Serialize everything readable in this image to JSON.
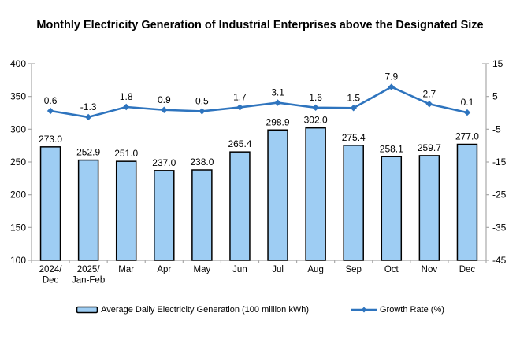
{
  "title": "Monthly Electricity Generation of Industrial Enterprises above the Designated Size",
  "chart_data": {
    "type": "bar",
    "subtype": "combo-bar-line",
    "categories": [
      "2024/\nDec",
      "2025/\nJan-Feb",
      "Mar",
      "Apr",
      "May",
      "Jun",
      "Jul",
      "Aug",
      "Sep",
      "Oct",
      "Nov",
      "Dec"
    ],
    "series": [
      {
        "name": "Average Daily Electricity Generation (100 million kWh)",
        "type": "bar",
        "axis": "left",
        "values": [
          273.0,
          252.9,
          251.0,
          237.0,
          238.0,
          265.4,
          298.9,
          302.0,
          275.4,
          258.1,
          259.7,
          277.0
        ],
        "fill_color": "#9ECDF3",
        "border_color": "#000000"
      },
      {
        "name": "Growth Rate (%)",
        "type": "line",
        "axis": "right",
        "values": [
          0.6,
          -1.3,
          1.8,
          0.9,
          0.5,
          1.7,
          3.1,
          1.6,
          1.5,
          7.9,
          2.7,
          0.1
        ],
        "color": "#2E74BE"
      }
    ],
    "left_axis": {
      "min": 100,
      "max": 400,
      "ticks": [
        400,
        350,
        300,
        250,
        200,
        150,
        100
      ]
    },
    "right_axis": {
      "min": -45,
      "max": 15,
      "ticks": [
        15,
        5,
        -5,
        -15,
        -25,
        -35,
        -45
      ]
    },
    "grid": false,
    "legend_position": "bottom",
    "data_labels": true,
    "axis_color": "#A9A9A9",
    "label_color": "#000000"
  },
  "legend": {
    "items": [
      {
        "label": "Average Daily Electricity Generation (100 million kWh)",
        "type": "bar"
      },
      {
        "label": "Growth Rate (%)",
        "type": "line"
      }
    ]
  }
}
